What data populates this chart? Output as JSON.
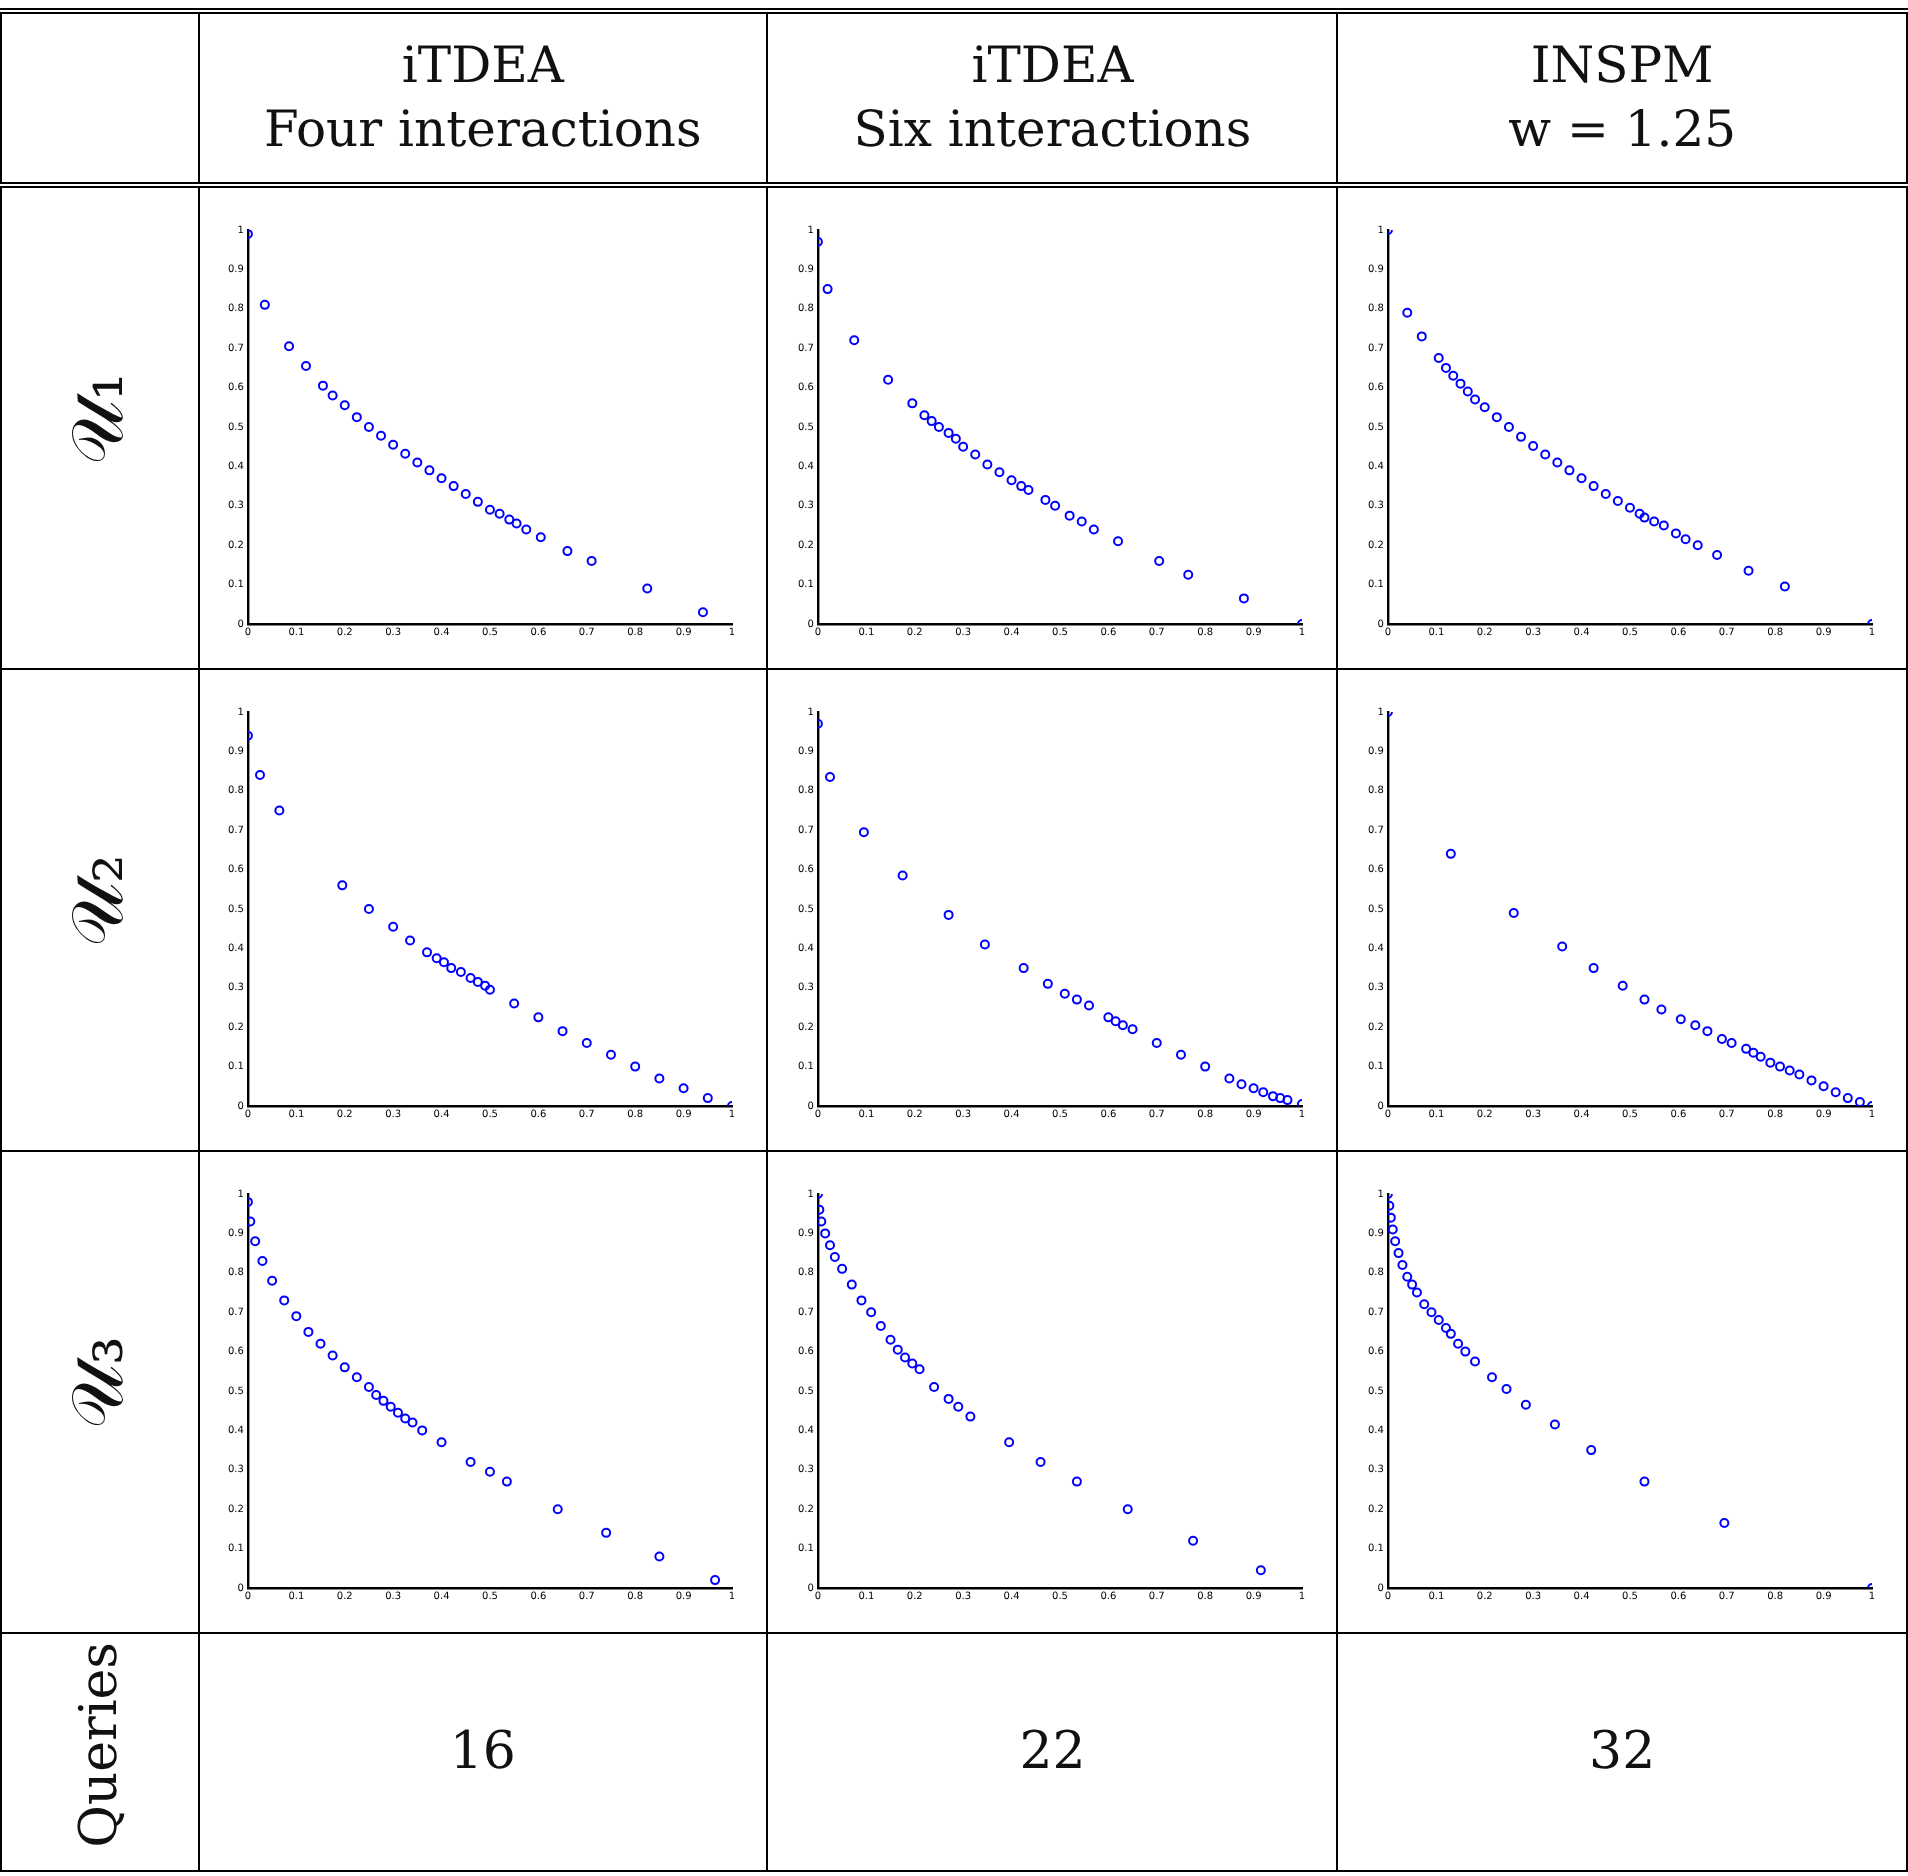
{
  "chart_data": [
    {
      "type": "other",
      "annotations": [
        "iTDEA\nFour interactions",
        "iTDEA\nSix interactions",
        "INSPM\nw = 1.25",
        "𝒰₁",
        "𝒰₂",
        "𝒰₃",
        "Queries",
        "16",
        "22",
        "32"
      ]
    },
    {
      "type": "scatter",
      "color": "#0000ff",
      "marker": "circle",
      "xlim": [
        0,
        1
      ],
      "ylim": [
        0,
        1
      ],
      "xticks": [
        0,
        0.1,
        0.2,
        0.3,
        0.4,
        0.5,
        0.6,
        0.7,
        0.8,
        0.9,
        1
      ],
      "yticks": [
        0,
        0.1,
        0.2,
        0.3,
        0.4,
        0.5,
        0.6,
        0.7,
        0.8,
        0.9,
        1
      ],
      "x": [
        0,
        0.035,
        0.085,
        0.12,
        0.155,
        0.175,
        0.2,
        0.225,
        0.25,
        0.275,
        0.3,
        0.325,
        0.35,
        0.375,
        0.4,
        0.425,
        0.45,
        0.475,
        0.5,
        0.52,
        0.54,
        0.555,
        0.575,
        0.605,
        0.66,
        0.71,
        0.825,
        0.94
      ],
      "values": [
        0.99,
        0.81,
        0.705,
        0.655,
        0.605,
        0.58,
        0.555,
        0.525,
        0.5,
        0.478,
        0.455,
        0.432,
        0.41,
        0.39,
        0.37,
        0.35,
        0.33,
        0.31,
        0.29,
        0.28,
        0.265,
        0.255,
        0.24,
        0.22,
        0.185,
        0.16,
        0.09,
        0.03
      ]
    },
    {
      "type": "scatter",
      "color": "#0000ff",
      "marker": "circle",
      "xlim": [
        0,
        1
      ],
      "ylim": [
        0,
        1
      ],
      "xticks": [
        0,
        0.1,
        0.2,
        0.3,
        0.4,
        0.5,
        0.6,
        0.7,
        0.8,
        0.9,
        1
      ],
      "yticks": [
        0,
        0.1,
        0.2,
        0.3,
        0.4,
        0.5,
        0.6,
        0.7,
        0.8,
        0.9,
        1
      ],
      "x": [
        0,
        0.02,
        0.075,
        0.145,
        0.195,
        0.22,
        0.235,
        0.25,
        0.27,
        0.285,
        0.3,
        0.325,
        0.35,
        0.375,
        0.4,
        0.42,
        0.435,
        0.47,
        0.49,
        0.52,
        0.545,
        0.57,
        0.62,
        0.705,
        0.765,
        0.88,
        1
      ],
      "values": [
        0.97,
        0.85,
        0.72,
        0.62,
        0.56,
        0.53,
        0.515,
        0.5,
        0.485,
        0.47,
        0.45,
        0.43,
        0.405,
        0.385,
        0.365,
        0.35,
        0.34,
        0.315,
        0.3,
        0.275,
        0.26,
        0.24,
        0.21,
        0.16,
        0.125,
        0.065,
        0
      ]
    },
    {
      "type": "scatter",
      "color": "#0000ff",
      "marker": "circle",
      "xlim": [
        0,
        1
      ],
      "ylim": [
        0,
        1
      ],
      "xticks": [
        0,
        0.1,
        0.2,
        0.3,
        0.4,
        0.5,
        0.6,
        0.7,
        0.8,
        0.9,
        1
      ],
      "yticks": [
        0,
        0.1,
        0.2,
        0.3,
        0.4,
        0.5,
        0.6,
        0.7,
        0.8,
        0.9,
        1
      ],
      "x": [
        0,
        0.04,
        0.07,
        0.105,
        0.12,
        0.135,
        0.15,
        0.165,
        0.18,
        0.2,
        0.225,
        0.25,
        0.275,
        0.3,
        0.325,
        0.35,
        0.375,
        0.4,
        0.425,
        0.45,
        0.475,
        0.5,
        0.52,
        0.53,
        0.55,
        0.57,
        0.595,
        0.615,
        0.64,
        0.68,
        0.745,
        0.82,
        1
      ],
      "values": [
        1,
        0.79,
        0.73,
        0.675,
        0.65,
        0.63,
        0.61,
        0.59,
        0.57,
        0.55,
        0.525,
        0.5,
        0.475,
        0.452,
        0.43,
        0.41,
        0.39,
        0.37,
        0.35,
        0.33,
        0.312,
        0.295,
        0.28,
        0.27,
        0.26,
        0.25,
        0.23,
        0.215,
        0.2,
        0.175,
        0.135,
        0.095,
        0
      ]
    },
    {
      "type": "scatter",
      "color": "#0000ff",
      "marker": "circle",
      "xlim": [
        0,
        1
      ],
      "ylim": [
        0,
        1
      ],
      "xticks": [
        0,
        0.1,
        0.2,
        0.3,
        0.4,
        0.5,
        0.6,
        0.7,
        0.8,
        0.9,
        1
      ],
      "yticks": [
        0,
        0.1,
        0.2,
        0.3,
        0.4,
        0.5,
        0.6,
        0.7,
        0.8,
        0.9,
        1
      ],
      "x": [
        0,
        0.025,
        0.065,
        0.195,
        0.25,
        0.3,
        0.335,
        0.37,
        0.39,
        0.405,
        0.42,
        0.44,
        0.46,
        0.475,
        0.49,
        0.5,
        0.55,
        0.6,
        0.65,
        0.7,
        0.75,
        0.8,
        0.85,
        0.9,
        0.95,
        1
      ],
      "values": [
        0.94,
        0.84,
        0.75,
        0.56,
        0.5,
        0.455,
        0.42,
        0.39,
        0.375,
        0.365,
        0.35,
        0.34,
        0.325,
        0.315,
        0.305,
        0.295,
        0.26,
        0.225,
        0.19,
        0.16,
        0.13,
        0.1,
        0.07,
        0.045,
        0.02,
        0
      ]
    },
    {
      "type": "scatter",
      "color": "#0000ff",
      "marker": "circle",
      "xlim": [
        0,
        1
      ],
      "ylim": [
        0,
        1
      ],
      "xticks": [
        0,
        0.1,
        0.2,
        0.3,
        0.4,
        0.5,
        0.6,
        0.7,
        0.8,
        0.9,
        1
      ],
      "yticks": [
        0,
        0.1,
        0.2,
        0.3,
        0.4,
        0.5,
        0.6,
        0.7,
        0.8,
        0.9,
        1
      ],
      "x": [
        0,
        0.025,
        0.095,
        0.175,
        0.27,
        0.345,
        0.425,
        0.475,
        0.51,
        0.535,
        0.56,
        0.6,
        0.615,
        0.63,
        0.65,
        0.7,
        0.75,
        0.8,
        0.85,
        0.875,
        0.9,
        0.92,
        0.94,
        0.955,
        0.97,
        1
      ],
      "values": [
        0.97,
        0.835,
        0.695,
        0.585,
        0.485,
        0.41,
        0.35,
        0.31,
        0.285,
        0.27,
        0.255,
        0.225,
        0.215,
        0.205,
        0.195,
        0.16,
        0.13,
        0.1,
        0.07,
        0.055,
        0.045,
        0.035,
        0.025,
        0.02,
        0.015,
        0.005
      ]
    },
    {
      "type": "scatter",
      "color": "#0000ff",
      "marker": "circle",
      "xlim": [
        0,
        1
      ],
      "ylim": [
        0,
        1
      ],
      "xticks": [
        0,
        0.1,
        0.2,
        0.3,
        0.4,
        0.5,
        0.6,
        0.7,
        0.8,
        0.9,
        1
      ],
      "yticks": [
        0,
        0.1,
        0.2,
        0.3,
        0.4,
        0.5,
        0.6,
        0.7,
        0.8,
        0.9,
        1
      ],
      "x": [
        0,
        0.13,
        0.26,
        0.36,
        0.425,
        0.485,
        0.53,
        0.565,
        0.605,
        0.635,
        0.66,
        0.69,
        0.71,
        0.74,
        0.755,
        0.77,
        0.79,
        0.81,
        0.83,
        0.85,
        0.875,
        0.9,
        0.925,
        0.95,
        0.975,
        1
      ],
      "values": [
        1,
        0.64,
        0.49,
        0.405,
        0.35,
        0.305,
        0.27,
        0.245,
        0.22,
        0.205,
        0.19,
        0.17,
        0.16,
        0.145,
        0.135,
        0.125,
        0.11,
        0.1,
        0.09,
        0.08,
        0.065,
        0.05,
        0.035,
        0.02,
        0.01,
        0
      ]
    },
    {
      "type": "scatter",
      "color": "#0000ff",
      "marker": "circle",
      "xlim": [
        0,
        1
      ],
      "ylim": [
        0,
        1
      ],
      "xticks": [
        0,
        0.1,
        0.2,
        0.3,
        0.4,
        0.5,
        0.6,
        0.7,
        0.8,
        0.9,
        1
      ],
      "yticks": [
        0,
        0.1,
        0.2,
        0.3,
        0.4,
        0.5,
        0.6,
        0.7,
        0.8,
        0.9,
        1
      ],
      "x": [
        0,
        0.005,
        0.015,
        0.03,
        0.05,
        0.075,
        0.1,
        0.125,
        0.15,
        0.175,
        0.2,
        0.225,
        0.25,
        0.265,
        0.28,
        0.295,
        0.31,
        0.325,
        0.34,
        0.36,
        0.4,
        0.46,
        0.5,
        0.535,
        0.64,
        0.74,
        0.85,
        0.965
      ],
      "values": [
        0.98,
        0.93,
        0.88,
        0.83,
        0.78,
        0.73,
        0.69,
        0.65,
        0.62,
        0.59,
        0.56,
        0.535,
        0.51,
        0.49,
        0.475,
        0.46,
        0.445,
        0.43,
        0.42,
        0.4,
        0.37,
        0.32,
        0.295,
        0.27,
        0.2,
        0.14,
        0.08,
        0.02
      ]
    },
    {
      "type": "scatter",
      "color": "#0000ff",
      "marker": "circle",
      "xlim": [
        0,
        1
      ],
      "ylim": [
        0,
        1
      ],
      "xticks": [
        0,
        0.1,
        0.2,
        0.3,
        0.4,
        0.5,
        0.6,
        0.7,
        0.8,
        0.9,
        1
      ],
      "yticks": [
        0,
        0.1,
        0.2,
        0.3,
        0.4,
        0.5,
        0.6,
        0.7,
        0.8,
        0.9,
        1
      ],
      "x": [
        0,
        0.003,
        0.007,
        0.015,
        0.025,
        0.035,
        0.05,
        0.07,
        0.09,
        0.11,
        0.13,
        0.15,
        0.165,
        0.18,
        0.195,
        0.21,
        0.24,
        0.27,
        0.29,
        0.315,
        0.395,
        0.46,
        0.535,
        0.64,
        0.775,
        0.915
      ],
      "values": [
        1,
        0.96,
        0.93,
        0.9,
        0.87,
        0.84,
        0.81,
        0.77,
        0.73,
        0.7,
        0.665,
        0.63,
        0.605,
        0.585,
        0.57,
        0.555,
        0.51,
        0.48,
        0.46,
        0.435,
        0.37,
        0.32,
        0.27,
        0.2,
        0.12,
        0.045
      ]
    },
    {
      "type": "scatter",
      "color": "#0000ff",
      "marker": "circle",
      "xlim": [
        0,
        1
      ],
      "ylim": [
        0,
        1
      ],
      "xticks": [
        0,
        0.1,
        0.2,
        0.3,
        0.4,
        0.5,
        0.6,
        0.7,
        0.8,
        0.9,
        1
      ],
      "yticks": [
        0,
        0.1,
        0.2,
        0.3,
        0.4,
        0.5,
        0.6,
        0.7,
        0.8,
        0.9,
        1
      ],
      "x": [
        0,
        0.003,
        0.006,
        0.01,
        0.015,
        0.022,
        0.03,
        0.04,
        0.05,
        0.06,
        0.075,
        0.09,
        0.105,
        0.12,
        0.13,
        0.145,
        0.16,
        0.18,
        0.215,
        0.245,
        0.285,
        0.345,
        0.42,
        0.53,
        0.695,
        1
      ],
      "values": [
        1,
        0.97,
        0.94,
        0.91,
        0.88,
        0.85,
        0.82,
        0.79,
        0.77,
        0.75,
        0.72,
        0.7,
        0.68,
        0.66,
        0.645,
        0.62,
        0.6,
        0.575,
        0.535,
        0.505,
        0.465,
        0.415,
        0.35,
        0.27,
        0.165,
        0
      ]
    }
  ]
}
